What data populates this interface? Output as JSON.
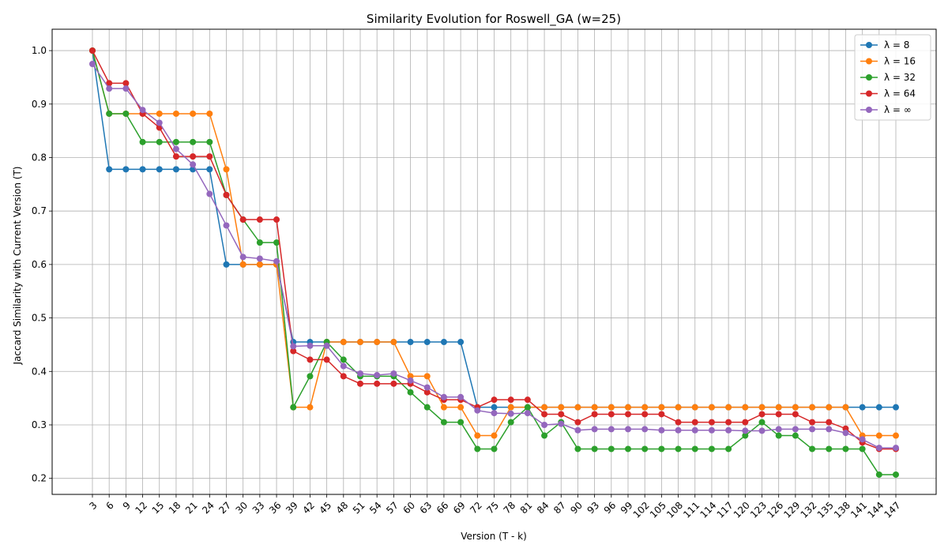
{
  "chart_data": {
    "type": "line",
    "title": "Similarity Evolution for Roswell_GA (w=25)",
    "xlabel": "Version (T - k)",
    "ylabel": "Jaccard Similarity with Current Version (T)",
    "ylim": [
      0.17,
      1.04
    ],
    "yticks": [
      0.2,
      0.3,
      0.4,
      0.5,
      0.6,
      0.7,
      0.8,
      0.9,
      1.0
    ],
    "grid": true,
    "legend_position": "top-right",
    "categories": [
      "3",
      "6",
      "9",
      "12",
      "15",
      "18",
      "21",
      "24",
      "27",
      "30",
      "33",
      "36",
      "39",
      "42",
      "45",
      "48",
      "51",
      "54",
      "57",
      "60",
      "63",
      "66",
      "69",
      "72",
      "75",
      "78",
      "81",
      "84",
      "87",
      "90",
      "93",
      "96",
      "99",
      "102",
      "105",
      "108",
      "111",
      "114",
      "117",
      "120",
      "123",
      "126",
      "129",
      "132",
      "135",
      "138",
      "141",
      "144",
      "147"
    ],
    "series": [
      {
        "name": "λ = 8",
        "color": "#1f77b4",
        "values": [
          1.0,
          0.778,
          0.778,
          0.778,
          0.778,
          0.778,
          0.778,
          0.778,
          0.6,
          0.6,
          0.6,
          0.6,
          0.455,
          0.455,
          0.455,
          0.455,
          0.455,
          0.455,
          0.455,
          0.455,
          0.455,
          0.455,
          0.455,
          0.333,
          0.333,
          0.333,
          0.333,
          0.333,
          0.333,
          0.333,
          0.333,
          0.333,
          0.333,
          0.333,
          0.333,
          0.333,
          0.333,
          0.333,
          0.333,
          0.333,
          0.333,
          0.333,
          0.333,
          0.333,
          0.333,
          0.333,
          0.333,
          0.333,
          0.333
        ]
      },
      {
        "name": "λ = 16",
        "color": "#ff7f0e",
        "values": [
          1.0,
          0.882,
          0.882,
          0.882,
          0.882,
          0.882,
          0.882,
          0.882,
          0.778,
          0.6,
          0.6,
          0.6,
          0.333,
          0.333,
          0.455,
          0.455,
          0.455,
          0.455,
          0.455,
          0.391,
          0.391,
          0.333,
          0.333,
          0.28,
          0.28,
          0.333,
          0.333,
          0.333,
          0.333,
          0.333,
          0.333,
          0.333,
          0.333,
          0.333,
          0.333,
          0.333,
          0.333,
          0.333,
          0.333,
          0.333,
          0.333,
          0.333,
          0.333,
          0.333,
          0.333,
          0.333,
          0.28,
          0.28,
          0.28
        ]
      },
      {
        "name": "λ = 32",
        "color": "#2ca02c",
        "values": [
          1.0,
          0.882,
          0.882,
          0.829,
          0.829,
          0.829,
          0.829,
          0.829,
          0.73,
          0.684,
          0.641,
          0.641,
          0.333,
          0.391,
          0.455,
          0.422,
          0.391,
          0.391,
          0.391,
          0.361,
          0.333,
          0.305,
          0.305,
          0.255,
          0.255,
          0.305,
          0.333,
          0.28,
          0.305,
          0.255,
          0.255,
          0.255,
          0.255,
          0.255,
          0.255,
          0.255,
          0.255,
          0.255,
          0.255,
          0.28,
          0.305,
          0.28,
          0.28,
          0.255,
          0.255,
          0.255,
          0.255,
          0.207,
          0.207
        ]
      },
      {
        "name": "λ = 64",
        "color": "#d62728",
        "values": [
          1.0,
          0.939,
          0.939,
          0.882,
          0.856,
          0.802,
          0.802,
          0.802,
          0.73,
          0.684,
          0.684,
          0.684,
          0.438,
          0.422,
          0.422,
          0.391,
          0.377,
          0.377,
          0.377,
          0.377,
          0.361,
          0.347,
          0.347,
          0.333,
          0.347,
          0.347,
          0.347,
          0.32,
          0.32,
          0.305,
          0.32,
          0.32,
          0.32,
          0.32,
          0.32,
          0.305,
          0.305,
          0.305,
          0.305,
          0.305,
          0.32,
          0.32,
          0.32,
          0.305,
          0.305,
          0.293,
          0.267,
          0.255,
          0.255
        ]
      },
      {
        "name": "λ = ∞",
        "color": "#9467bd",
        "values": [
          0.975,
          0.929,
          0.929,
          0.889,
          0.865,
          0.816,
          0.787,
          0.732,
          0.673,
          0.614,
          0.611,
          0.606,
          0.447,
          0.448,
          0.448,
          0.41,
          0.396,
          0.393,
          0.396,
          0.383,
          0.37,
          0.352,
          0.352,
          0.327,
          0.322,
          0.321,
          0.322,
          0.3,
          0.302,
          0.29,
          0.292,
          0.292,
          0.292,
          0.292,
          0.29,
          0.29,
          0.29,
          0.29,
          0.29,
          0.289,
          0.289,
          0.292,
          0.292,
          0.292,
          0.292,
          0.285,
          0.273,
          0.257,
          0.257
        ]
      }
    ]
  }
}
